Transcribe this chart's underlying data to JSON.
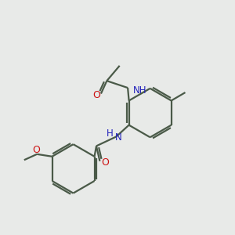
{
  "bg_color": "#e8eae8",
  "bond_color": "#4a5a48",
  "O_color": "#cc1111",
  "N_color": "#2222bb",
  "lw": 1.6,
  "fig_w": 3.0,
  "fig_h": 3.0,
  "dpi": 100,
  "xlim": [
    0,
    10
  ],
  "ylim": [
    0,
    10
  ],
  "r": 1.05
}
